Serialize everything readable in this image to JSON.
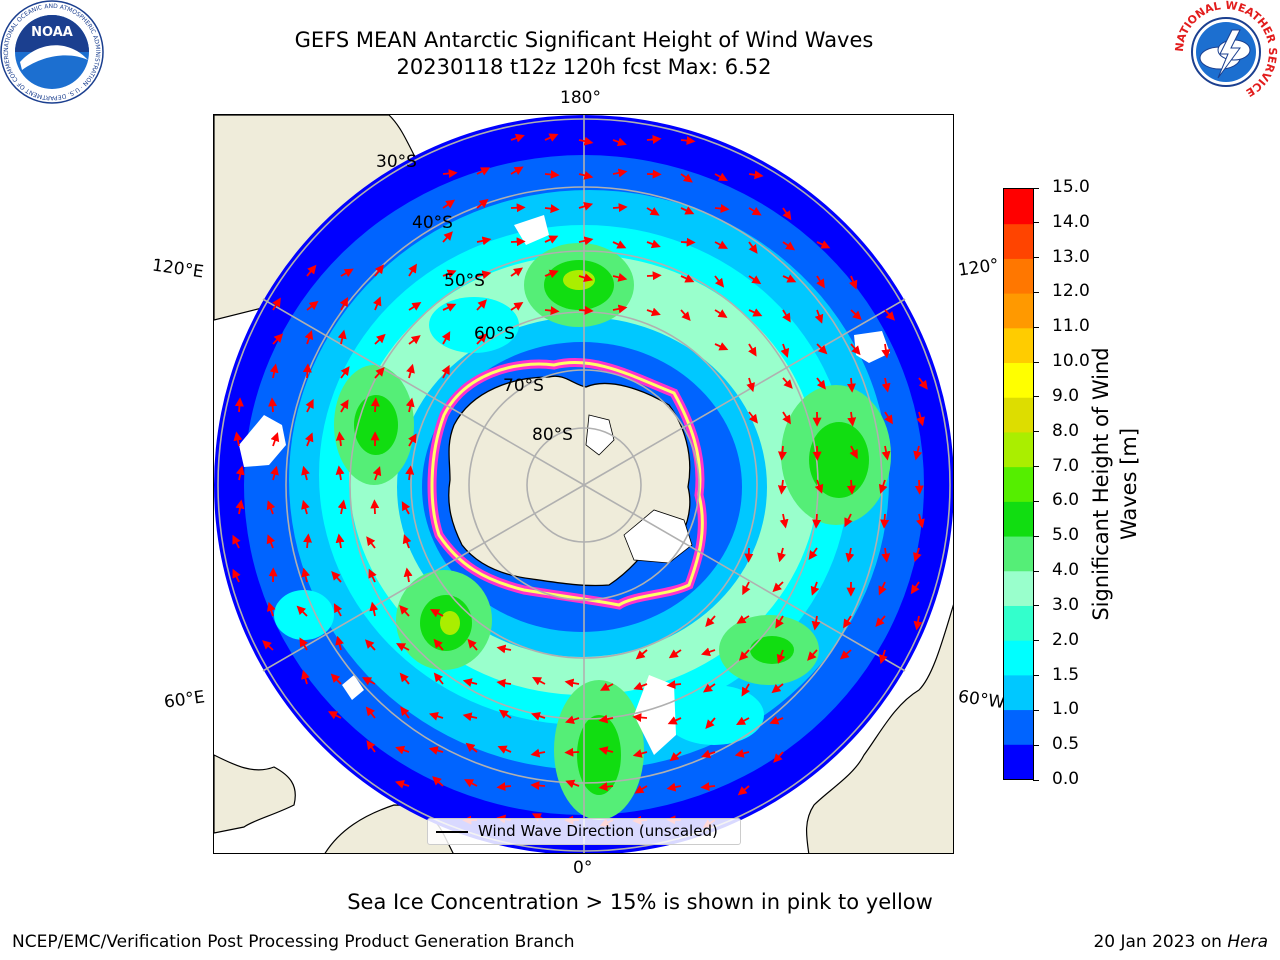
{
  "header": {
    "title_line1": "GEFS MEAN Antarctic Significant Height of Wind Waves",
    "title_line2": "20230118 t12z 120h fcst   Max: 6.52"
  },
  "logos": {
    "noaa": {
      "text": "NOAA",
      "ring_text": "NATIONAL OCEANIC AND ATMOSPHERIC ADMINISTRATION · U.S. DEPARTMENT OF COMMERCE"
    },
    "nws": {
      "ring_text": "NATIONAL WEATHER SERVICE"
    }
  },
  "map": {
    "projection": "south-polar-stereographic",
    "longitude_labels": [
      "180°",
      "120°E",
      "120°",
      "60°E",
      "60°W",
      "0°"
    ],
    "latitude_labels": [
      "30°S",
      "40°S",
      "50°S",
      "60°S",
      "70°S",
      "80°S"
    ],
    "legend_text": "Wind Wave Direction (unscaled)",
    "colors": {
      "land": "#efecda",
      "coastline": "#000000",
      "graticule": "#b0b0b0",
      "arrow": "#ff0000",
      "sea_ice_edge": "#ff33cc"
    }
  },
  "colorbar": {
    "label": "Significant Height of Wind\nWaves [m]",
    "ticks": [
      "0.0",
      "0.5",
      "1.0",
      "1.5",
      "2.0",
      "3.0",
      "4.0",
      "5.0",
      "6.0",
      "7.0",
      "8.0",
      "9.0",
      "10.0",
      "11.0",
      "12.0",
      "13.0",
      "14.0",
      "15.0"
    ],
    "colors": [
      "#0000ff",
      "#0064ff",
      "#00c8ff",
      "#00ffff",
      "#33ffcc",
      "#99ffcc",
      "#55ee77",
      "#11dd11",
      "#55ee00",
      "#aaee00",
      "#dddd00",
      "#ffff00",
      "#ffcc00",
      "#ff9900",
      "#ff7700",
      "#ff4400",
      "#ff0000"
    ]
  },
  "footer": {
    "ice_note": "Sea Ice Concentration > 15% is shown in pink to yellow",
    "credit": "NCEP/EMC/Verification Post Processing Product Generation Branch",
    "date_prefix": "20 Jan 2023 on ",
    "machine": "Hera"
  }
}
